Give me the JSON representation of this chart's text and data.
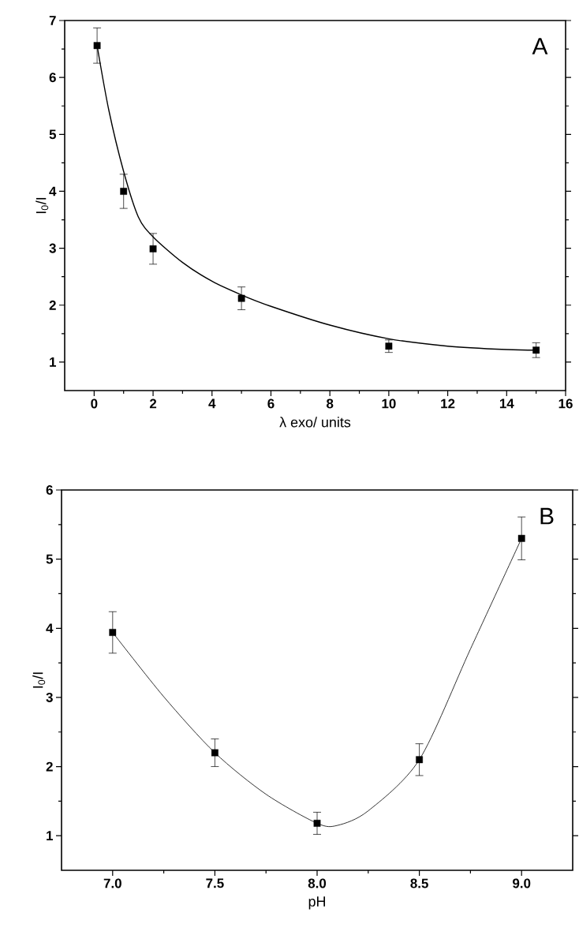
{
  "chart_data": [
    {
      "type": "scatter",
      "xlabel": "λ exo/ units",
      "ylabel": "I$_{0}$/I",
      "annotations": [
        "A"
      ],
      "marker": "square",
      "xlim": [
        -1,
        16
      ],
      "ylim": [
        0.5,
        7
      ],
      "xticks": [
        0,
        2,
        4,
        6,
        8,
        10,
        12,
        14,
        16
      ],
      "yticks": [
        1,
        2,
        3,
        4,
        5,
        6,
        7
      ],
      "series": [
        {
          "color": "#000000",
          "x": [
            0.1,
            1,
            2,
            5,
            10,
            15
          ],
          "values": [
            6.56,
            4.0,
            2.99,
            2.12,
            1.28,
            1.21
          ],
          "errors": [
            0.31,
            0.3,
            0.27,
            0.2,
            0.11,
            0.13
          ]
        },
        {
          "type": "line",
          "color": "#000000",
          "marker": "none",
          "x": [
            0.1,
            0.5,
            1,
            1.5,
            2,
            3,
            4,
            5,
            6,
            8,
            10,
            12,
            14,
            15
          ],
          "values": [
            6.56,
            5.42,
            4.35,
            3.55,
            3.2,
            2.75,
            2.42,
            2.18,
            1.98,
            1.65,
            1.41,
            1.28,
            1.22,
            1.21
          ]
        }
      ]
    },
    {
      "type": "scatter",
      "xlabel": "pH",
      "ylabel": "I$_{0}$/I",
      "annotations": [
        "B"
      ],
      "marker": "square",
      "xlim": [
        6.75,
        9.25
      ],
      "ylim": [
        0.5,
        6
      ],
      "xticks": [
        {
          "value": 7,
          "label": "7.0"
        },
        {
          "value": 7.5,
          "label": "7.5"
        },
        {
          "value": 8,
          "label": "8.0"
        },
        {
          "value": 8.5,
          "label": "8.5"
        },
        {
          "value": 9,
          "label": "9.0"
        }
      ],
      "yticks": [
        1,
        2,
        3,
        4,
        5,
        6
      ],
      "series": [
        {
          "color": "#000000",
          "x": [
            7.0,
            7.5,
            8.0,
            8.5,
            9.0
          ],
          "values": [
            3.94,
            2.2,
            1.18,
            2.1,
            5.3
          ],
          "errors": [
            0.3,
            0.2,
            0.16,
            0.23,
            0.31
          ]
        },
        {
          "type": "line",
          "color": "#000000",
          "marker": "none",
          "x": [
            7.0,
            7.25,
            7.5,
            7.75,
            8.0,
            8.1,
            8.25,
            8.5,
            8.75,
            9.0
          ],
          "values": [
            3.94,
            3.01,
            2.2,
            1.6,
            1.18,
            1.15,
            1.36,
            2.1,
            3.7,
            5.3
          ]
        }
      ]
    }
  ]
}
